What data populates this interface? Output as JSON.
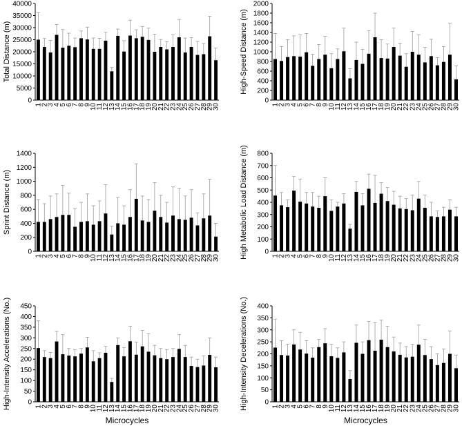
{
  "chart_data": [
    {
      "type": "bar",
      "ylabel": "Total Distance (m)",
      "xlabel": "",
      "ylim": [
        0,
        40000
      ],
      "yticks": [
        0,
        5000,
        10000,
        15000,
        20000,
        25000,
        30000,
        35000,
        40000
      ],
      "categories": [
        "1",
        "2",
        "3",
        "4",
        "5",
        "6",
        "7",
        "8",
        "9",
        "10",
        "11",
        "12",
        "13",
        "14",
        "15",
        "16",
        "17",
        "18",
        "19",
        "20",
        "21",
        "22",
        "23",
        "24",
        "25",
        "26",
        "27",
        "28",
        "29",
        "30"
      ],
      "values": [
        25000,
        22000,
        19700,
        27000,
        21700,
        22500,
        21900,
        25600,
        25100,
        21200,
        21200,
        24600,
        11900,
        26600,
        20100,
        26700,
        25600,
        26200,
        24900,
        20000,
        22000,
        21000,
        22000,
        26000,
        19700,
        22000,
        18700,
        19000,
        26400,
        16500
      ],
      "error_upper": [
        36200,
        25500,
        24700,
        31300,
        29200,
        27700,
        25700,
        28600,
        30200,
        25700,
        25600,
        28100,
        13500,
        29400,
        24600,
        33100,
        29100,
        30500,
        29800,
        27300,
        25100,
        24200,
        27000,
        33400,
        25700,
        25900,
        24300,
        23400,
        34700,
        21600
      ],
      "grid": false
    },
    {
      "type": "bar",
      "ylabel": "High-Speed Distance (m)",
      "xlabel": "",
      "ylim": [
        0,
        2000
      ],
      "yticks": [
        0,
        200,
        400,
        600,
        800,
        1000,
        1200,
        1400,
        1600,
        1800,
        2000
      ],
      "categories": [
        "1",
        "2",
        "3",
        "4",
        "5",
        "6",
        "7",
        "8",
        "9",
        "10",
        "11",
        "12",
        "13",
        "14",
        "15",
        "16",
        "17",
        "18",
        "19",
        "20",
        "21",
        "22",
        "23",
        "24",
        "25",
        "26",
        "27",
        "28",
        "29",
        "30"
      ],
      "values": [
        850,
        810,
        890,
        910,
        900,
        990,
        710,
        850,
        940,
        660,
        850,
        1010,
        450,
        830,
        750,
        960,
        1300,
        870,
        860,
        1100,
        920,
        690,
        1000,
        940,
        780,
        910,
        720,
        790,
        940,
        430
      ],
      "error_upper": [
        1380,
        1110,
        1250,
        1330,
        1350,
        1380,
        950,
        1150,
        1320,
        960,
        1060,
        1490,
        650,
        1200,
        1050,
        1440,
        1800,
        1250,
        1160,
        1490,
        1180,
        960,
        1420,
        1350,
        1090,
        1260,
        880,
        1110,
        1590,
        710
      ],
      "grid": false
    },
    {
      "type": "bar",
      "ylabel": "Sprint Distance (m)",
      "xlabel": "",
      "ylim": [
        0,
        1400
      ],
      "yticks": [
        0,
        200,
        400,
        600,
        800,
        1000,
        1200,
        1400
      ],
      "categories": [
        "1",
        "2",
        "3",
        "4",
        "5",
        "6",
        "7",
        "8",
        "9",
        "10",
        "11",
        "12",
        "13",
        "14",
        "15",
        "16",
        "17",
        "18",
        "19",
        "20",
        "21",
        "22",
        "23",
        "24",
        "25",
        "26",
        "27",
        "28",
        "29",
        "30"
      ],
      "values": [
        420,
        420,
        460,
        490,
        520,
        520,
        350,
        420,
        430,
        380,
        430,
        540,
        240,
        400,
        380,
        490,
        750,
        440,
        420,
        580,
        490,
        410,
        510,
        460,
        450,
        480,
        370,
        470,
        510,
        210
      ],
      "error_upper": [
        740,
        680,
        790,
        820,
        940,
        830,
        610,
        700,
        820,
        650,
        720,
        950,
        360,
        770,
        650,
        880,
        1250,
        790,
        740,
        980,
        800,
        700,
        920,
        900,
        790,
        880,
        550,
        820,
        1030,
        400
      ],
      "grid": false
    },
    {
      "type": "bar",
      "ylabel": "High Metabolic Load Distance (m)",
      "xlabel": "",
      "ylim": [
        0,
        800
      ],
      "yticks": [
        0,
        100,
        200,
        300,
        400,
        500,
        600,
        700,
        800
      ],
      "categories": [
        "1",
        "2",
        "3",
        "4",
        "5",
        "6",
        "7",
        "8",
        "9",
        "10",
        "11",
        "12",
        "13",
        "14",
        "15",
        "16",
        "17",
        "18",
        "19",
        "20",
        "21",
        "22",
        "23",
        "24",
        "25",
        "26",
        "27",
        "28",
        "29",
        "30"
      ],
      "values": [
        455,
        375,
        360,
        495,
        405,
        390,
        365,
        355,
        450,
        330,
        365,
        390,
        185,
        485,
        375,
        510,
        395,
        470,
        410,
        380,
        350,
        345,
        335,
        430,
        355,
        285,
        280,
        285,
        340,
        285
      ],
      "error_upper": [
        700,
        480,
        420,
        610,
        590,
        480,
        480,
        450,
        600,
        420,
        400,
        470,
        220,
        570,
        470,
        630,
        620,
        560,
        520,
        490,
        450,
        430,
        460,
        570,
        460,
        400,
        330,
        360,
        420,
        360
      ],
      "grid": false
    },
    {
      "type": "bar",
      "ylabel": "High-Intensity Accelerations (No.)",
      "xlabel": "Microcycles",
      "ylim": [
        0,
        450
      ],
      "yticks": [
        0,
        50,
        100,
        150,
        200,
        250,
        300,
        350,
        400,
        450
      ],
      "categories": [
        "1",
        "2",
        "3",
        "4",
        "5",
        "6",
        "7",
        "8",
        "9",
        "10",
        "11",
        "12",
        "13",
        "14",
        "15",
        "16",
        "17",
        "18",
        "19",
        "20",
        "21",
        "22",
        "23",
        "24",
        "25",
        "26",
        "27",
        "28",
        "29",
        "30"
      ],
      "values": [
        252,
        210,
        205,
        283,
        223,
        217,
        213,
        226,
        255,
        190,
        205,
        230,
        93,
        266,
        213,
        284,
        221,
        260,
        235,
        218,
        205,
        200,
        210,
        248,
        210,
        168,
        163,
        170,
        220,
        162
      ],
      "error_upper": [
        380,
        240,
        232,
        330,
        315,
        250,
        245,
        250,
        303,
        240,
        230,
        260,
        110,
        300,
        255,
        355,
        280,
        335,
        320,
        265,
        250,
        245,
        250,
        315,
        265,
        210,
        200,
        215,
        300,
        210
      ],
      "grid": false
    },
    {
      "type": "bar",
      "ylabel": "High-Intensity Decelerations (No.)",
      "xlabel": "Microcycles",
      "ylim": [
        0,
        400
      ],
      "yticks": [
        0,
        50,
        100,
        150,
        200,
        250,
        300,
        350,
        400
      ],
      "categories": [
        "1",
        "2",
        "3",
        "4",
        "5",
        "6",
        "7",
        "8",
        "9",
        "10",
        "11",
        "12",
        "13",
        "14",
        "15",
        "16",
        "17",
        "18",
        "19",
        "20",
        "21",
        "22",
        "23",
        "24",
        "25",
        "26",
        "27",
        "28",
        "29",
        "30"
      ],
      "values": [
        226,
        195,
        193,
        239,
        218,
        201,
        184,
        228,
        244,
        190,
        183,
        206,
        95,
        246,
        200,
        257,
        213,
        259,
        228,
        210,
        196,
        185,
        188,
        238,
        195,
        178,
        153,
        162,
        200,
        140
      ],
      "error_upper": [
        345,
        255,
        240,
        300,
        290,
        255,
        225,
        260,
        305,
        240,
        225,
        250,
        130,
        320,
        250,
        335,
        330,
        340,
        315,
        270,
        245,
        230,
        240,
        320,
        260,
        230,
        200,
        220,
        295,
        195
      ],
      "grid": false
    }
  ]
}
